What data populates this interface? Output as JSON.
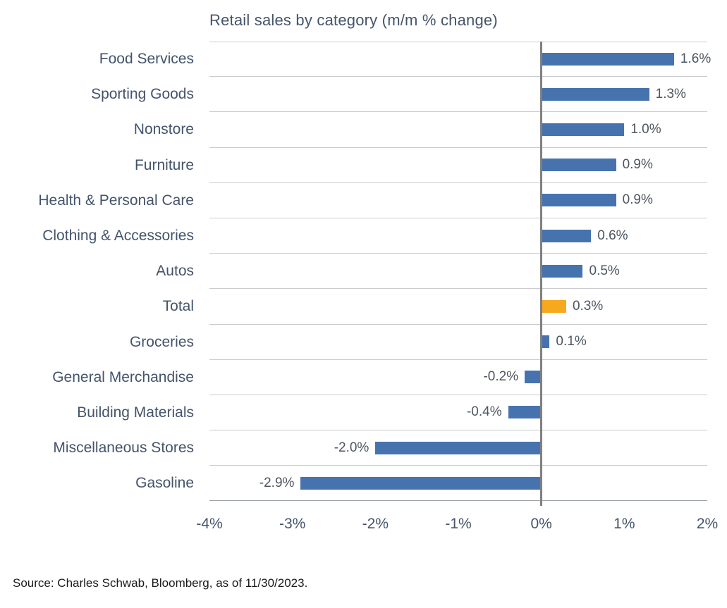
{
  "page": {
    "source_note": "Source: Charles Schwab, Bloomberg, as of 11/30/2023."
  },
  "chart_data": {
    "type": "bar",
    "orientation": "horizontal",
    "title": "Retail sales by category (m/m % change)",
    "categories": [
      "Food Services",
      "Sporting Goods",
      "Nonstore",
      "Furniture",
      "Health & Personal Care",
      "Clothing & Accessories",
      "Autos",
      "Total",
      "Groceries",
      "General Merchandise",
      "Building Materials",
      "Miscellaneous Stores",
      "Gasoline"
    ],
    "values": [
      1.6,
      1.3,
      1.0,
      0.9,
      0.9,
      0.6,
      0.5,
      0.3,
      0.1,
      -0.2,
      -0.4,
      -2.0,
      -2.9
    ],
    "value_labels": [
      "1.6%",
      "1.3%",
      "1.0%",
      "0.9%",
      "0.9%",
      "0.6%",
      "0.5%",
      "0.3%",
      "0.1%",
      "-0.2%",
      "-0.4%",
      "-2.0%",
      "-2.9%"
    ],
    "highlight_category": "Total",
    "xlim": [
      -4,
      2
    ],
    "x_ticks": [
      "-4%",
      "-3%",
      "-2%",
      "-1%",
      "0%",
      "1%",
      "2%"
    ],
    "xlabel": "",
    "ylabel": "",
    "legend": "none",
    "grid": "horizontal-row-separators",
    "colors": {
      "bar": "#4673AE",
      "highlight": "#F8A81C",
      "axis_text": "#44546A",
      "value_label_text": "#4D565F",
      "gridline": "#C9CBCE",
      "bottom_axis_line": "#9EA3A8",
      "zero_line": "#808080",
      "source_text": "#1A1A1A",
      "background": "#FFFFFF"
    }
  }
}
